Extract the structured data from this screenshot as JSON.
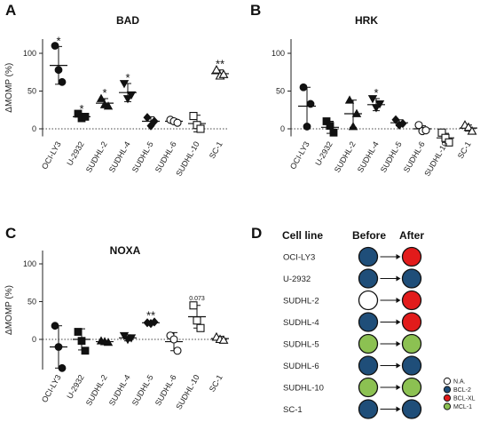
{
  "chart_data": [
    {
      "panel": "A",
      "type": "scatter",
      "title": "BAD",
      "ylabel": "ΔMOMP (%)",
      "ylim": [
        -10,
        120
      ],
      "yticks": [
        "0",
        "50",
        "100"
      ],
      "dotted_zero_line": true,
      "categories": [
        "OCI-LY3",
        "U-2932",
        "SUDHL-2",
        "SUDHL-4",
        "SUDHL-5",
        "SUDHL-6",
        "SUDHL-10",
        "SC-1"
      ],
      "markers": [
        "circle",
        "square",
        "triangle",
        "triangle-down",
        "diamond",
        "circle-open",
        "square-open",
        "triangle-open"
      ],
      "points": [
        [
          110,
          78,
          62
        ],
        [
          20,
          14,
          16
        ],
        [
          40,
          32,
          30
        ],
        [
          60,
          40,
          45
        ],
        [
          15,
          4,
          10
        ],
        [
          12,
          10,
          8
        ],
        [
          17,
          5,
          0
        ],
        [
          78,
          70,
          72
        ]
      ],
      "means": [
        84,
        16,
        34,
        48,
        10,
        10,
        7,
        73
      ],
      "errors": [
        25,
        3,
        6,
        12,
        6,
        3,
        11,
        5
      ],
      "significance": [
        "*",
        "*",
        "*",
        "*",
        "",
        "",
        "",
        "**"
      ]
    },
    {
      "panel": "B",
      "type": "scatter",
      "title": "HRK",
      "ylabel": "",
      "ylim": [
        -10,
        120
      ],
      "yticks": [
        "0",
        "50",
        "100"
      ],
      "dotted_zero_line": true,
      "categories": [
        "OCI-LY3",
        "U-2932",
        "SUDHL-2",
        "SUDHL-4",
        "SUDHL-5",
        "SUDHL-6",
        "SUDHL-10",
        "SC-1"
      ],
      "markers": [
        "circle",
        "square",
        "triangle",
        "triangle-down",
        "diamond",
        "circle-open",
        "square-open",
        "triangle-open"
      ],
      "points": [
        [
          55,
          3,
          33
        ],
        [
          10,
          4,
          -5
        ],
        [
          38,
          3,
          20
        ],
        [
          40,
          28,
          33
        ],
        [
          12,
          5,
          7
        ],
        [
          5,
          -3,
          -2
        ],
        [
          -5,
          -12,
          -18
        ],
        [
          5,
          2,
          -3
        ]
      ],
      "means": [
        30,
        2,
        20,
        32,
        8,
        0,
        -12,
        1
      ],
      "errors": [
        25,
        8,
        18,
        8,
        4,
        4,
        6,
        4
      ],
      "significance": [
        "",
        "",
        "",
        "*",
        "",
        "",
        "",
        ""
      ]
    },
    {
      "panel": "C",
      "type": "scatter",
      "title": "NOXA",
      "ylabel": "ΔMOMP (%)",
      "ylim": [
        -40,
        120
      ],
      "yticks": [
        "0",
        "50",
        "100"
      ],
      "dotted_zero_line": true,
      "categories": [
        "OCI-LY3",
        "U-2932",
        "SUDHL-2",
        "SUDHL-4",
        "SUDHL-5",
        "SUDHL-6",
        "SUDHL-10",
        "SC-1"
      ],
      "markers": [
        "circle",
        "square",
        "triangle",
        "triangle-down",
        "diamond",
        "circle-open",
        "square-open",
        "triangle-open"
      ],
      "points": [
        [
          18,
          -10,
          -38
        ],
        [
          10,
          -2,
          -15
        ],
        [
          -2,
          -3,
          -4
        ],
        [
          5,
          0,
          2
        ],
        [
          22,
          21,
          23
        ],
        [
          5,
          0,
          -15
        ],
        [
          45,
          25,
          15
        ],
        [
          3,
          0,
          -1
        ]
      ],
      "means": [
        -10,
        0,
        -3,
        2,
        22,
        -3,
        30,
        1
      ],
      "errors": [
        28,
        14,
        1,
        4,
        2,
        12,
        15,
        3
      ],
      "significance": [
        "",
        "",
        "",
        "",
        "**",
        "",
        "0.073",
        ""
      ]
    }
  ],
  "panel_d": {
    "label": "D",
    "headers": {
      "cell_line": "Cell line",
      "before": "Before",
      "after": "After"
    },
    "rows": [
      {
        "name": "OCI-LY3",
        "before": "BCL-2",
        "after": "BCL-XL"
      },
      {
        "name": "U-2932",
        "before": "BCL-2",
        "after": "BCL-2"
      },
      {
        "name": "SUDHL-2",
        "before": "N.A.",
        "after": "BCL-XL"
      },
      {
        "name": "SUDHL-4",
        "before": "BCL-2",
        "after": "BCL-XL"
      },
      {
        "name": "SUDHL-5",
        "before": "MCL-1",
        "after": "MCL-1"
      },
      {
        "name": "SUDHL-6",
        "before": "BCL-2",
        "after": "BCL-2"
      },
      {
        "name": "SUDHL-10",
        "before": "MCL-1",
        "after": "MCL-1"
      },
      {
        "name": "SC-1",
        "before": "BCL-2",
        "after": "BCL-2"
      }
    ],
    "legend": [
      {
        "label": "N.A.",
        "color": "#ffffff"
      },
      {
        "label": "BCL-2",
        "color": "#1f4e79"
      },
      {
        "label": "BCL-XL",
        "color": "#e21b1b"
      },
      {
        "label": "MCL-1",
        "color": "#8cc152"
      }
    ],
    "arrow": "→"
  }
}
